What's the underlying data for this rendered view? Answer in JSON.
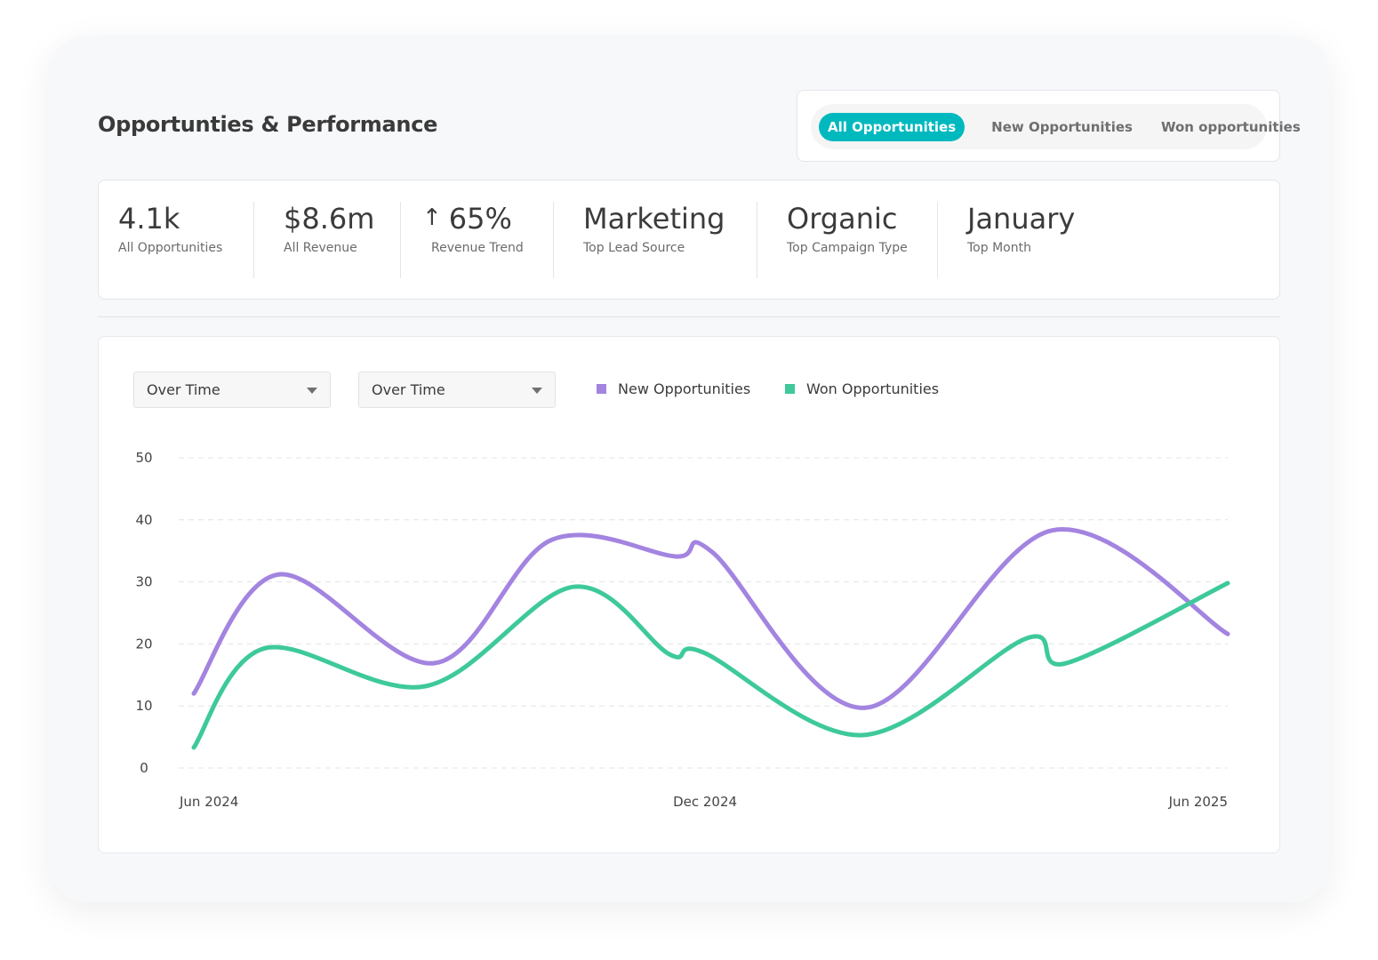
{
  "header": {
    "title": "Opportunties & Performance",
    "tabs": [
      {
        "label": "All Opportunities",
        "active": true
      },
      {
        "label": "New Opportunities",
        "active": false
      },
      {
        "label": "Won opportunities",
        "active": false
      }
    ]
  },
  "kpis": [
    {
      "value": "4.1k",
      "label": "All Opportunities"
    },
    {
      "value": "$8.6m",
      "label": "All Revenue"
    },
    {
      "value": "65%",
      "label": "Revenue Trend",
      "icon": "arrow-up-icon",
      "arrow": "↑"
    },
    {
      "value": "Marketing",
      "label": "Top Lead Source"
    },
    {
      "value": "Organic",
      "label": "Top Campaign Type"
    },
    {
      "value": "January",
      "label": "Top Month"
    }
  ],
  "controls": {
    "select1": "Over Time",
    "select2": "Over Time"
  },
  "colors": {
    "accent": "#00b9be",
    "new": "#a384e0",
    "won": "#3ec99b"
  },
  "chart_data": {
    "type": "line",
    "ylim": [
      0,
      50
    ],
    "yticks": [
      "0",
      "10",
      "20",
      "30",
      "40",
      "50"
    ],
    "xlim": [
      "2024-06-01",
      "2025-06-01"
    ],
    "xticks": [
      {
        "date": "2024-06-01",
        "label": "Jun 2024"
      },
      {
        "date": "2024-12-01",
        "label": "Dec 2024"
      },
      {
        "date": "2025-06-01",
        "label": "Jun 2025"
      }
    ],
    "grid": true,
    "legend": "top",
    "series": [
      {
        "name": "New Opportunities",
        "color": "#a384e0",
        "x": [
          "2024-06-01",
          "2024-07-01",
          "2024-08-25",
          "2024-10-05",
          "2024-11-18",
          "2024-12-01",
          "2025-01-24",
          "2025-03-31",
          "2025-06-01"
        ],
        "y": [
          12,
          31.2,
          16.9,
          36.7,
          34.1,
          34.8,
          9.7,
          38.3,
          21.6
        ]
      },
      {
        "name": "Won Opportunities",
        "color": "#3ec99b",
        "x": [
          "2024-06-01",
          "2024-06-26",
          "2024-08-22",
          "2024-10-13",
          "2024-11-16",
          "2024-11-28",
          "2025-01-23",
          "2025-03-22",
          "2025-04-05",
          "2025-06-01"
        ],
        "y": [
          3.3,
          19.3,
          13.2,
          29.2,
          18.3,
          18.6,
          5.3,
          20.9,
          16.9,
          29.8
        ]
      }
    ]
  }
}
